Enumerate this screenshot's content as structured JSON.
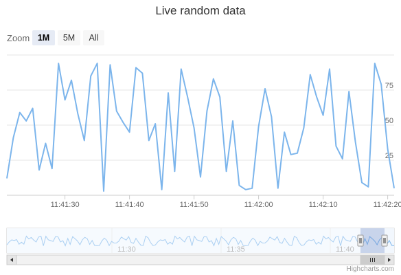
{
  "chart_data": {
    "type": "line",
    "title": "Live random data",
    "xlabel": "",
    "ylabel": "",
    "ylim": [
      0,
      100
    ],
    "y_ticks": [
      "25",
      "50",
      "75"
    ],
    "x_ticks": [
      "11:41:30",
      "11:41:40",
      "11:41:50",
      "11:42:00",
      "11:42:10",
      "11:42:20"
    ],
    "grid": true,
    "legend": "none",
    "series_color": "#7cb5ec",
    "series": [
      {
        "x": [
          "11:41:21",
          "11:41:22",
          "11:41:23",
          "11:41:24",
          "11:41:25",
          "11:41:26",
          "11:41:27",
          "11:41:28",
          "11:41:29",
          "11:41:30",
          "11:41:31",
          "11:41:32",
          "11:41:33",
          "11:41:34",
          "11:41:35",
          "11:41:36",
          "11:41:37",
          "11:41:38",
          "11:41:39",
          "11:41:40",
          "11:41:41",
          "11:41:42",
          "11:41:43",
          "11:41:44",
          "11:41:45",
          "11:41:46",
          "11:41:47",
          "11:41:48",
          "11:41:49",
          "11:41:50",
          "11:41:51",
          "11:41:52",
          "11:41:53",
          "11:41:54",
          "11:41:55",
          "11:41:56",
          "11:41:57",
          "11:41:58",
          "11:41:59",
          "11:42:00",
          "11:42:01",
          "11:42:02",
          "11:42:03",
          "11:42:04",
          "11:42:05",
          "11:42:06",
          "11:42:07",
          "11:42:08",
          "11:42:09",
          "11:42:10",
          "11:42:11",
          "11:42:12",
          "11:42:13",
          "11:42:14",
          "11:42:15",
          "11:42:16",
          "11:42:17",
          "11:42:18",
          "11:42:19",
          "11:42:20",
          "11:42:21"
        ],
        "values": [
          12,
          41,
          59,
          53,
          62,
          18,
          37,
          19,
          94,
          68,
          82,
          58,
          39,
          85,
          94,
          3,
          93,
          60,
          52,
          45,
          91,
          87,
          39,
          51,
          4,
          73,
          17,
          90,
          70,
          48,
          13,
          60,
          83,
          70,
          17,
          53,
          7,
          4,
          5,
          49,
          76,
          56,
          5,
          45,
          29,
          30,
          48,
          86,
          70,
          57,
          90,
          35,
          26,
          74,
          38,
          9,
          6,
          94,
          79,
          33,
          5
        ]
      }
    ]
  },
  "toolbar": {
    "zoom_label": "Zoom",
    "buttons": [
      "1M",
      "5M",
      "All"
    ],
    "active": "1M"
  },
  "navigator": {
    "ticks": [
      "11:30",
      "11:35",
      "11:40"
    ]
  },
  "credits": "Highcharts.com"
}
